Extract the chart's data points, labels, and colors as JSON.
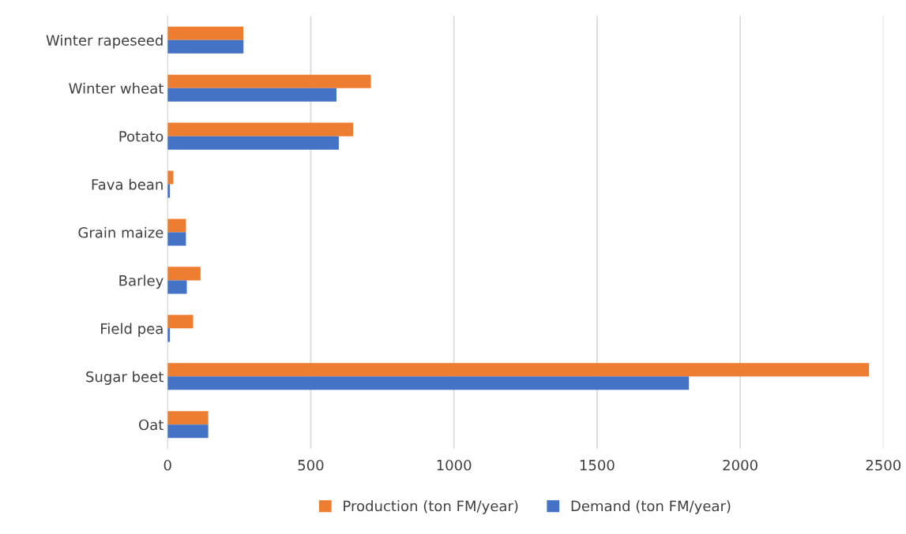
{
  "chart_data": {
    "type": "bar",
    "orientation": "horizontal",
    "categories": [
      "Winter rapeseed",
      "Winter wheat",
      "Potato",
      "Fava bean",
      "Grain maize",
      "Barley",
      "Field pea",
      "Sugar beet",
      "Oat"
    ],
    "series": [
      {
        "name": "Production (ton FM/year)",
        "color": "#ed7d31",
        "values": [
          265,
          710,
          648,
          20,
          64,
          115,
          89,
          2450,
          142
        ]
      },
      {
        "name": "Demand (ton FM/year)",
        "color": "#4472c4",
        "values": [
          265,
          590,
          598,
          8,
          64,
          67,
          8,
          1821,
          142
        ]
      }
    ],
    "xlim": [
      0,
      2500
    ],
    "xticks": [
      0,
      500,
      1000,
      1500,
      2000,
      2500
    ],
    "grid": "x",
    "legend": "bottom"
  }
}
